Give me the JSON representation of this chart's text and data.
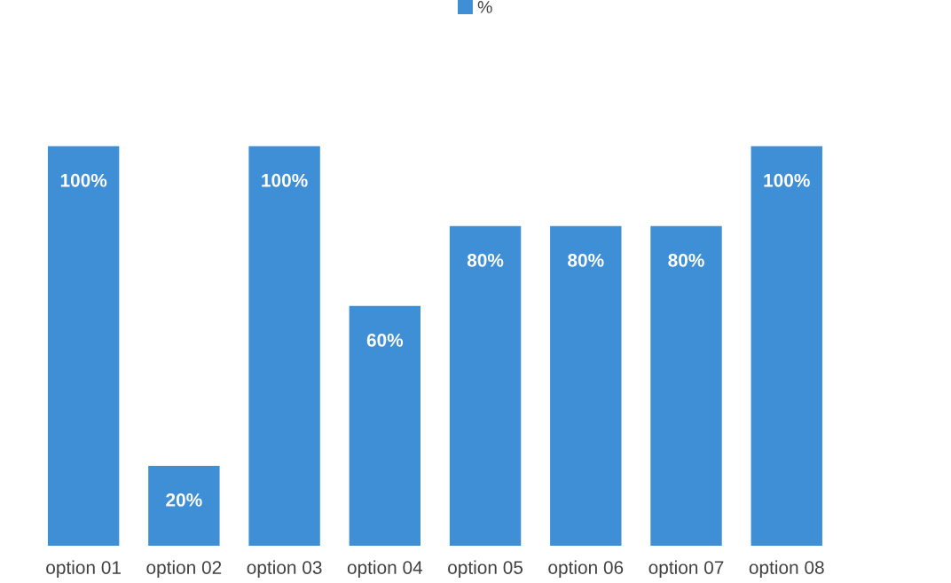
{
  "chart_data": {
    "type": "bar",
    "categories": [
      "option 01",
      "option 02",
      "option 03",
      "option 04",
      "option 05",
      "option 06",
      "option 07",
      "option 08"
    ],
    "series": [
      {
        "name": "%",
        "color": "#3f8fd6",
        "values": [
          100,
          20,
          100,
          60,
          80,
          80,
          80,
          100
        ],
        "value_labels": [
          "100%",
          "20%",
          "100%",
          "60%",
          "80%",
          "80%",
          "80%",
          "100%"
        ]
      }
    ],
    "legend": "top",
    "grid": false
  }
}
